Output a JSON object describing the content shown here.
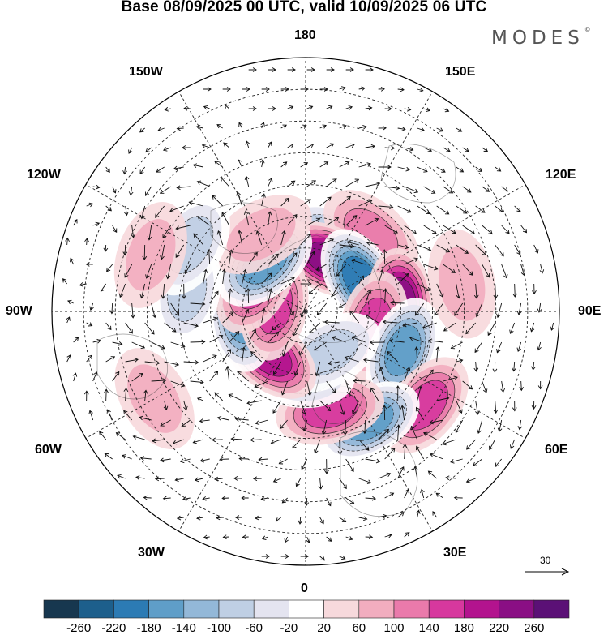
{
  "title": "Base 08/09/2025 00 UTC, valid 10/09/2025 06 UTC",
  "logo": {
    "text": "MODES",
    "mark": "©"
  },
  "longitude_labels": {
    "top": "180",
    "bottom": "0",
    "left": "90W",
    "right": "90E",
    "upper_left_1": "150W",
    "upper_left_2": "120W",
    "upper_right_1": "150E",
    "upper_right_2": "120E",
    "lower_left_1": "60W",
    "lower_left_2": "30W",
    "lower_right_1": "60E",
    "lower_right_2": "30E"
  },
  "reference_vector": {
    "label": "30"
  },
  "colorbar": {
    "ticks": [
      "-260",
      "-220",
      "-180",
      "-140",
      "-100",
      "-60",
      "-20",
      "20",
      "60",
      "100",
      "140",
      "180",
      "220",
      "260"
    ],
    "colors": [
      "#17374f",
      "#1d5f8c",
      "#2c7bb4",
      "#5f9ec8",
      "#93b8d8",
      "#bfcfe4",
      "#e4e4f0",
      "#ffffff",
      "#f7d9dc",
      "#f2adbf",
      "#ea7aab",
      "#d7389e",
      "#b3138e",
      "#8a0f84",
      "#5b1076"
    ]
  },
  "anomalies": [
    {
      "lon": 165,
      "lat": 65,
      "value": -80
    },
    {
      "lon": 140,
      "lat": 58,
      "value": 90
    },
    {
      "lon": 155,
      "lat": 72,
      "value": 200
    },
    {
      "lon": 120,
      "lat": 70,
      "value": -220
    },
    {
      "lon": 95,
      "lat": 60,
      "value": 200
    },
    {
      "lon": 78,
      "lat": 68,
      "value": 110
    },
    {
      "lon": 68,
      "lat": 57,
      "value": -150
    },
    {
      "lon": 52,
      "lat": 42,
      "value": 130
    },
    {
      "lon": 30,
      "lat": 50,
      "value": -150
    },
    {
      "lon": 14,
      "lat": 58,
      "value": 110
    },
    {
      "lon": -5,
      "lat": 70,
      "value": -80
    },
    {
      "lon": 30,
      "lat": 75,
      "value": -100
    },
    {
      "lon": -40,
      "lat": 72,
      "value": 180
    },
    {
      "lon": -85,
      "lat": 70,
      "value": -150
    },
    {
      "lon": -100,
      "lat": 80,
      "value": 130
    },
    {
      "lon": -120,
      "lat": 72,
      "value": 130
    },
    {
      "lon": -140,
      "lat": 70,
      "value": -160
    },
    {
      "lon": -150,
      "lat": 62,
      "value": 60
    },
    {
      "lon": -100,
      "lat": 52,
      "value": -80
    },
    {
      "lon": -120,
      "lat": 48,
      "value": -90
    },
    {
      "lon": -110,
      "lat": 38,
      "value": 60
    },
    {
      "lon": -60,
      "lat": 35,
      "value": 50
    },
    {
      "lon": 100,
      "lat": 40,
      "value": 40
    }
  ]
}
